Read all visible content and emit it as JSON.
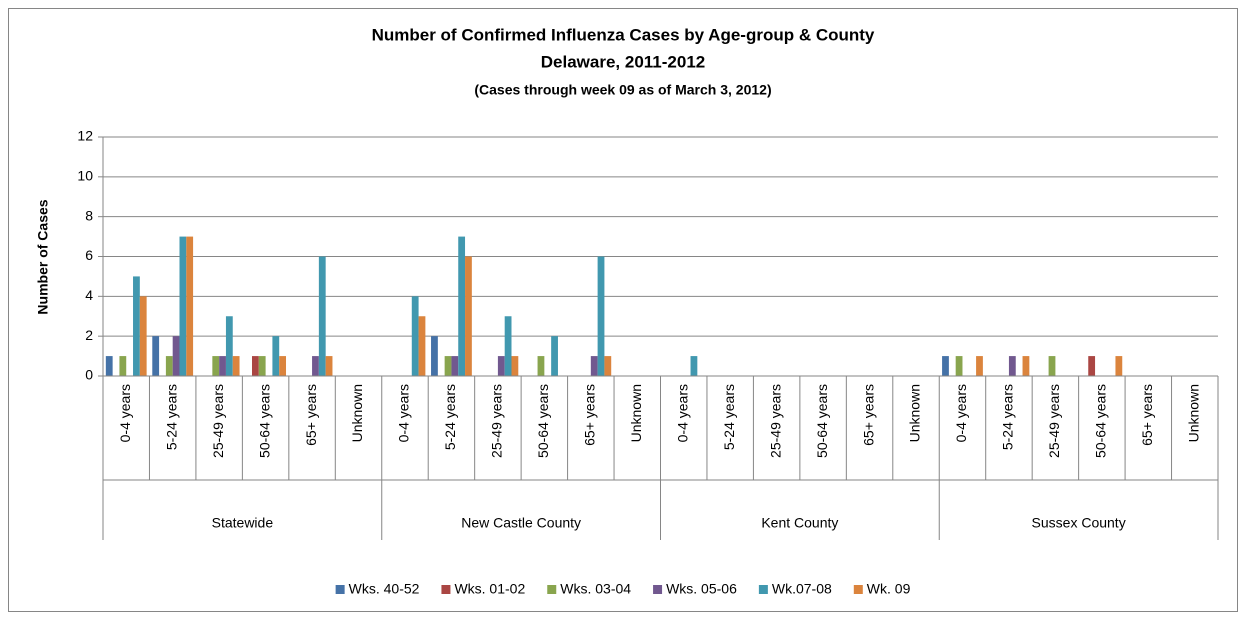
{
  "chart_data": {
    "type": "bar",
    "title": "Number of Confirmed Influenza Cases by Age-group & County",
    "subtitle": "Delaware, 2011-2012",
    "note": "(Cases through week 09 as of March 3, 2012)",
    "y_label": "Number of Cases",
    "category_groups": [
      "Statewide",
      "New Castle  County",
      "Kent County",
      "Sussex County"
    ],
    "categories": [
      "0-4 years",
      "5-24 years",
      "25-49 years",
      "50-64 years",
      "65+ years",
      "Unknown",
      "0-4 years",
      "5-24 years",
      "25-49 years",
      "50-64 years",
      "65+ years",
      "Unknown",
      "0-4 years",
      "5-24 years",
      "25-49 years",
      "50-64 years",
      "65+ years",
      "Unknown",
      "0-4 years",
      "5-24 years",
      "25-49 years",
      "50-64 years",
      "65+ years",
      "Unknown"
    ],
    "series": [
      {
        "name": "Wks. 40-52",
        "color": "#4572a7",
        "values": [
          1,
          2,
          0,
          0,
          0,
          0,
          0,
          2,
          0,
          0,
          0,
          0,
          0,
          0,
          0,
          0,
          0,
          0,
          1,
          0,
          0,
          0,
          0,
          0
        ]
      },
      {
        "name": "Wks. 01-02",
        "color": "#aa4643",
        "values": [
          0,
          0,
          0,
          1,
          0,
          0,
          0,
          0,
          0,
          0,
          0,
          0,
          0,
          0,
          0,
          0,
          0,
          0,
          0,
          0,
          0,
          1,
          0,
          0
        ]
      },
      {
        "name": "Wks. 03-04",
        "color": "#89a54e",
        "values": [
          1,
          1,
          1,
          1,
          0,
          0,
          0,
          1,
          0,
          1,
          0,
          0,
          0,
          0,
          0,
          0,
          0,
          0,
          1,
          0,
          1,
          0,
          0,
          0
        ]
      },
      {
        "name": "Wks. 05-06",
        "color": "#71588f",
        "values": [
          0,
          2,
          1,
          0,
          1,
          0,
          0,
          1,
          1,
          0,
          1,
          0,
          0,
          0,
          0,
          0,
          0,
          0,
          0,
          1,
          0,
          0,
          0,
          0
        ]
      },
      {
        "name": "Wk.07-08",
        "color": "#4198af",
        "values": [
          5,
          7,
          3,
          2,
          6,
          0,
          4,
          7,
          3,
          2,
          6,
          0,
          1,
          0,
          0,
          0,
          0,
          0,
          0,
          0,
          0,
          0,
          0,
          0
        ]
      },
      {
        "name": "Wk. 09",
        "color": "#db843d",
        "values": [
          4,
          7,
          1,
          1,
          1,
          0,
          3,
          6,
          1,
          0,
          1,
          0,
          0,
          0,
          0,
          0,
          0,
          0,
          1,
          1,
          0,
          1,
          0,
          0
        ]
      }
    ],
    "ylim": [
      0,
      12
    ],
    "yticks": [
      0,
      2,
      4,
      6,
      8,
      10,
      12
    ],
    "grid": true,
    "legend": "bottom"
  }
}
